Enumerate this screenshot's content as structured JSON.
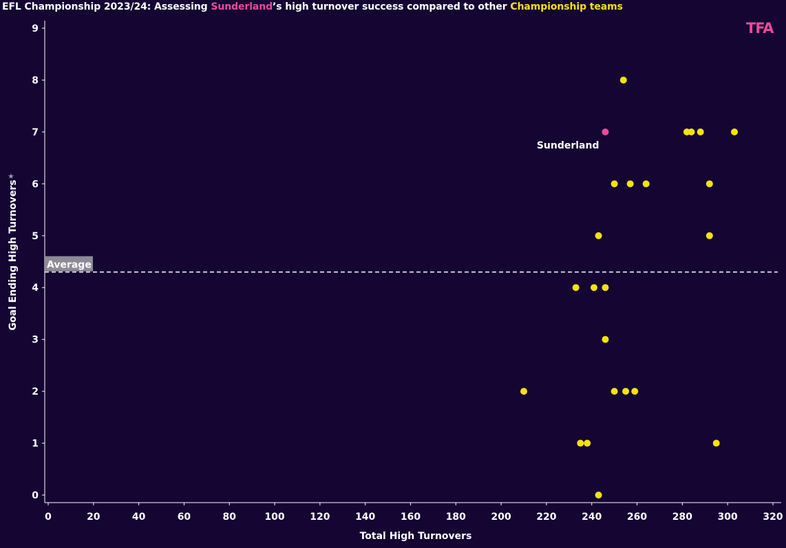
{
  "header": {
    "title_prefix": "EFL Championship 2023/24: Assessing ",
    "title_highlight_team": "Sunderland",
    "title_middle": "’s high turnover success compared to other ",
    "title_highlight_group": "Championship teams",
    "logo_text": "TFA"
  },
  "colors": {
    "background": "#140533",
    "highlight": "#ec4a97",
    "others": "#f6e20c"
  },
  "chart_data": {
    "type": "scatter",
    "xlabel": "Total High Turnovers",
    "ylabel": "Goal Ending High Turnovers",
    "xlim": [
      0,
      320
    ],
    "ylim": [
      0,
      9
    ],
    "xticks": [
      0,
      20,
      40,
      60,
      80,
      100,
      120,
      140,
      160,
      180,
      200,
      220,
      240,
      260,
      280,
      300,
      320
    ],
    "yticks": [
      0,
      1,
      2,
      3,
      4,
      5,
      6,
      7,
      8,
      9
    ],
    "grid": false,
    "reference_line": {
      "label": "Average",
      "y": 4.3,
      "style": "dashed"
    },
    "highlight": {
      "label": "Sunderland",
      "x": 246,
      "y": 7
    },
    "points": [
      {
        "x": 254,
        "y": 8
      },
      {
        "x": 282,
        "y": 7
      },
      {
        "x": 284,
        "y": 7
      },
      {
        "x": 288,
        "y": 7
      },
      {
        "x": 303,
        "y": 7
      },
      {
        "x": 250,
        "y": 6
      },
      {
        "x": 257,
        "y": 6
      },
      {
        "x": 264,
        "y": 6
      },
      {
        "x": 292,
        "y": 6
      },
      {
        "x": 243,
        "y": 5
      },
      {
        "x": 292,
        "y": 5
      },
      {
        "x": 233,
        "y": 4
      },
      {
        "x": 241,
        "y": 4
      },
      {
        "x": 246,
        "y": 4
      },
      {
        "x": 246,
        "y": 3
      },
      {
        "x": 210,
        "y": 2
      },
      {
        "x": 250,
        "y": 2
      },
      {
        "x": 255,
        "y": 2
      },
      {
        "x": 259,
        "y": 2
      },
      {
        "x": 235,
        "y": 1
      },
      {
        "x": 238,
        "y": 1
      },
      {
        "x": 295,
        "y": 1
      },
      {
        "x": 243,
        "y": 0
      }
    ]
  }
}
